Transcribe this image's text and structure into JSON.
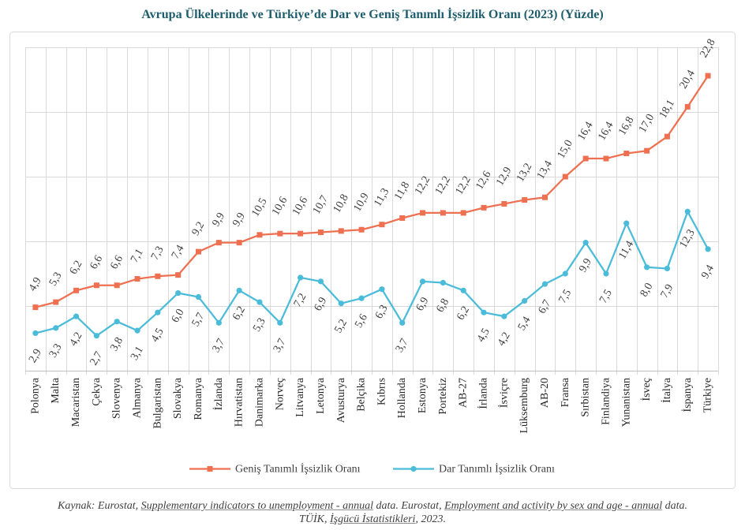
{
  "chart_data": {
    "type": "line",
    "title": "Avrupa Ülkelerinde ve Türkiye’de Dar ve Geniş Tanımlı İşsizlik Oranı (2023) (Yüzde)",
    "categories": [
      "Polonya",
      "Malta",
      "Macaristan",
      "Çekya",
      "Slovenya",
      "Almanya",
      "Bulgaristan",
      "Slovakya",
      "Romanya",
      "İzlanda",
      "Hırvatistan",
      "Danimarka",
      "Norveç",
      "Litvanya",
      "Letonya",
      "Avusturya",
      "Belçika",
      "Kıbrıs",
      "Hollanda",
      "Estonya",
      "Portekiz",
      "AB-27",
      "İrlanda",
      "İsviçre",
      "Lüksemburg",
      "AB-20",
      "Fransa",
      "Sırbistan",
      "Finlandiya",
      "Yunanistan",
      "İsveç",
      "İtalya",
      "İspanya",
      "Türkiye"
    ],
    "ylim": [
      0,
      25
    ],
    "ygrid_step": 5,
    "grid": true,
    "show_y_tick_labels": false,
    "legend_position": "bottom",
    "series": [
      {
        "name": "Geniş Tanımlı İşsizlik Oranı",
        "color": "#EE7051",
        "marker": "square",
        "label_position": "above",
        "values": [
          4.9,
          5.3,
          6.2,
          6.6,
          6.6,
          7.1,
          7.3,
          7.4,
          9.2,
          9.9,
          9.9,
          10.5,
          10.6,
          10.6,
          10.7,
          10.8,
          10.9,
          11.3,
          11.8,
          12.2,
          12.2,
          12.2,
          12.6,
          12.9,
          13.2,
          13.4,
          15.0,
          16.4,
          16.4,
          16.8,
          17.0,
          18.1,
          20.4,
          22.8
        ],
        "value_labels": [
          "4,9",
          "5,3",
          "6,2",
          "6,6",
          "6,6",
          "7,1",
          "7,3",
          "7,4",
          "9,2",
          "9,9",
          "9,9",
          "10,5",
          "10,6",
          "10,6",
          "10,7",
          "10,8",
          "10,9",
          "11,3",
          "11,8",
          "12,2",
          "12,2",
          "12,2",
          "12,6",
          "12,9",
          "13,2",
          "13,4",
          "15,0",
          "16,4",
          "16,4",
          "16,8",
          "17,0",
          "18,1",
          "20,4",
          "22,8"
        ]
      },
      {
        "name": "Dar Tanımlı İşsizlik Oranı",
        "color": "#4ABCD9",
        "marker": "circle",
        "label_position": "below",
        "values": [
          2.9,
          3.3,
          4.2,
          2.7,
          3.8,
          3.1,
          4.5,
          6.0,
          5.7,
          3.7,
          6.2,
          5.3,
          3.7,
          7.2,
          6.9,
          5.2,
          5.6,
          6.3,
          3.7,
          6.9,
          6.8,
          6.2,
          4.5,
          4.2,
          5.4,
          6.7,
          7.5,
          9.9,
          7.5,
          11.4,
          8.0,
          7.9,
          12.3,
          9.4
        ],
        "value_labels": [
          "2,9",
          "3,3",
          "4,2",
          "2,7",
          "3,8",
          "3,1",
          "4,5",
          "6,0",
          "5,7",
          "3,7",
          "6,2",
          "5,3",
          "3,7",
          "7,2",
          "6,9",
          "5,2",
          "5,6",
          "6,3",
          "3,7",
          "6,9",
          "6,8",
          "6,2",
          "4,5",
          "4,2",
          "5,4",
          "6,7",
          "7,5",
          "9,9",
          "7,5",
          "11,4",
          "8,0",
          "7,9",
          "12,3",
          "9,4"
        ]
      }
    ]
  },
  "theme": {
    "title_color": "#1E5D6D"
  },
  "source": {
    "line1": [
      "Kaynak: Eurostat, ",
      "Supplementary indicators to unemployment - annual",
      " data. Eurostat, ",
      "Employment and activity by sex and age - annual",
      " data."
    ],
    "line2": [
      "TÜİK, ",
      "İşgücü İstatistikleri",
      ", 2023."
    ]
  }
}
